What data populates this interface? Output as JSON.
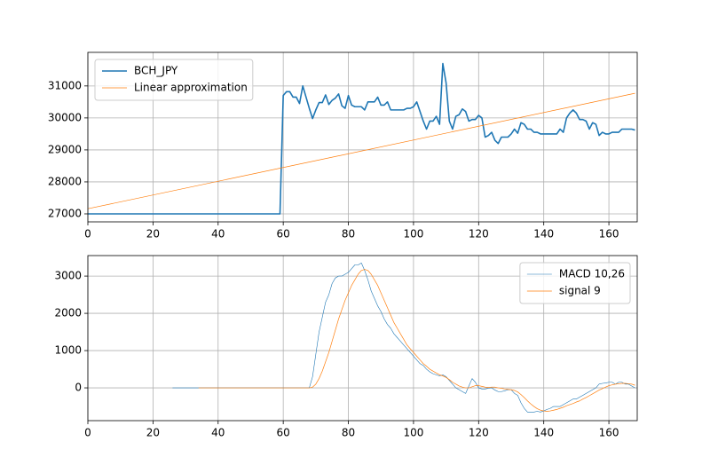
{
  "chart_data": [
    {
      "type": "line",
      "grid": true,
      "legend": "upper left",
      "xlim": [
        0,
        168.7
      ],
      "xticks": [
        0,
        20,
        40,
        60,
        80,
        100,
        120,
        140,
        160
      ],
      "ylim": [
        26750,
        32050
      ],
      "yticks": [
        27000,
        28000,
        29000,
        30000,
        31000
      ],
      "series": [
        {
          "name": "BCH_JPY",
          "color": "#1f77b4",
          "linewidth": 1.6,
          "x": [
            0,
            59,
            60,
            61,
            62,
            63,
            64,
            65,
            66,
            67,
            68,
            69,
            70,
            71,
            72,
            73,
            74,
            75,
            76,
            77,
            78,
            79,
            80,
            81,
            82,
            83,
            84,
            85,
            86,
            87,
            88,
            89,
            90,
            91,
            92,
            93,
            94,
            95,
            96,
            97,
            98,
            99,
            100,
            101,
            102,
            103,
            104,
            105,
            106,
            107,
            108,
            109,
            110,
            111,
            112,
            113,
            114,
            115,
            116,
            117,
            118,
            119,
            120,
            121,
            122,
            123,
            124,
            125,
            126,
            127,
            128,
            129,
            130,
            131,
            132,
            133,
            134,
            135,
            136,
            137,
            138,
            139,
            140,
            141,
            142,
            143,
            144,
            145,
            146,
            147,
            148,
            149,
            150,
            151,
            152,
            153,
            154,
            155,
            156,
            157,
            158,
            159,
            160,
            161,
            162,
            163,
            164,
            165,
            166,
            167,
            168
          ],
          "values": [
            27000,
            27000,
            30700,
            30820,
            30820,
            30650,
            30650,
            30450,
            31000,
            30650,
            30300,
            29980,
            30250,
            30480,
            30480,
            30720,
            30420,
            30550,
            30620,
            30750,
            30380,
            30300,
            30700,
            30400,
            30350,
            30350,
            30350,
            30250,
            30500,
            30500,
            30500,
            30650,
            30400,
            30400,
            30500,
            30250,
            30250,
            30250,
            30250,
            30250,
            30300,
            30300,
            30350,
            30500,
            30200,
            29900,
            29650,
            29900,
            29900,
            30050,
            29800,
            31700,
            31100,
            29900,
            29650,
            30050,
            30100,
            30280,
            30200,
            29900,
            29950,
            29950,
            30080,
            30000,
            29400,
            29450,
            29550,
            29300,
            29200,
            29400,
            29400,
            29400,
            29500,
            29650,
            29520,
            29850,
            29800,
            29650,
            29650,
            29550,
            29550,
            29500,
            29500,
            29500,
            29500,
            29500,
            29500,
            29650,
            29550,
            30000,
            30150,
            30250,
            30150,
            29950,
            29950,
            29900,
            29650,
            29850,
            29800,
            29450,
            29550,
            29500,
            29500,
            29550,
            29550,
            29550,
            29650,
            29650,
            29650,
            29650,
            29620
          ]
        },
        {
          "name": "Linear approximation",
          "color": "#ff7f0e",
          "linewidth": 0.7,
          "x": [
            0,
            168
          ],
          "values": [
            27160,
            30770
          ]
        }
      ]
    },
    {
      "type": "line",
      "grid": true,
      "legend": "upper right",
      "xlim": [
        0,
        168.7
      ],
      "xticks": [
        0,
        20,
        40,
        60,
        80,
        100,
        120,
        140,
        160
      ],
      "ylim": [
        -880,
        3550
      ],
      "yticks": [
        0,
        1000,
        2000,
        3000
      ],
      "series": [
        {
          "name": "MACD 10,26",
          "color": "#1f77b4",
          "linewidth": 0.6,
          "x": [
            26,
            68,
            69,
            70,
            71,
            72,
            73,
            74,
            75,
            76,
            77,
            78,
            79,
            80,
            81,
            82,
            83,
            84,
            85,
            86,
            87,
            88,
            89,
            90,
            91,
            92,
            93,
            94,
            95,
            96,
            97,
            98,
            99,
            100,
            101,
            102,
            103,
            104,
            105,
            106,
            107,
            108,
            109,
            110,
            111,
            112,
            113,
            114,
            115,
            116,
            117,
            118,
            119,
            120,
            121,
            122,
            123,
            124,
            125,
            126,
            127,
            128,
            129,
            130,
            131,
            132,
            133,
            134,
            135,
            136,
            137,
            138,
            139,
            140,
            141,
            142,
            143,
            144,
            145,
            146,
            147,
            148,
            149,
            150,
            151,
            152,
            153,
            154,
            155,
            156,
            157,
            158,
            159,
            160,
            161,
            162,
            163,
            164,
            165,
            166,
            167,
            168
          ],
          "values": [
            0,
            0,
            300,
            900,
            1500,
            1900,
            2300,
            2500,
            2800,
            2950,
            3000,
            3000,
            3050,
            3100,
            3200,
            3300,
            3300,
            3350,
            3150,
            2900,
            2600,
            2400,
            2200,
            2050,
            1850,
            1700,
            1600,
            1450,
            1350,
            1250,
            1150,
            1050,
            950,
            850,
            750,
            650,
            600,
            500,
            430,
            380,
            350,
            320,
            350,
            300,
            200,
            100,
            0,
            -50,
            -100,
            -150,
            50,
            250,
            150,
            0,
            -30,
            -30,
            -10,
            0,
            -60,
            -100,
            -100,
            -80,
            -50,
            -50,
            -150,
            -200,
            -400,
            -550,
            -650,
            -650,
            -650,
            -630,
            -650,
            -620,
            -580,
            -550,
            -500,
            -500,
            -500,
            -450,
            -400,
            -350,
            -300,
            -300,
            -250,
            -200,
            -150,
            -100,
            -50,
            0,
            100,
            120,
            130,
            150,
            150,
            100,
            150,
            150,
            100,
            100,
            50,
            0
          ]
        },
        {
          "name": "signal 9",
          "color": "#ff7f0e",
          "linewidth": 0.7,
          "x": [
            34,
            68,
            69,
            70,
            71,
            72,
            73,
            74,
            75,
            76,
            77,
            78,
            79,
            80,
            81,
            82,
            83,
            84,
            85,
            86,
            87,
            88,
            89,
            90,
            91,
            92,
            93,
            94,
            95,
            96,
            97,
            98,
            99,
            100,
            101,
            102,
            103,
            104,
            105,
            106,
            107,
            108,
            109,
            110,
            111,
            112,
            113,
            114,
            115,
            116,
            117,
            118,
            119,
            120,
            121,
            122,
            123,
            124,
            125,
            126,
            127,
            128,
            129,
            130,
            131,
            132,
            133,
            134,
            135,
            136,
            137,
            138,
            139,
            140,
            141,
            142,
            143,
            144,
            145,
            146,
            147,
            148,
            149,
            150,
            151,
            152,
            153,
            154,
            155,
            156,
            157,
            158,
            159,
            160,
            161,
            162,
            163,
            164,
            165,
            166,
            167,
            168
          ],
          "values": [
            0,
            0,
            20,
            100,
            250,
            450,
            700,
            950,
            1250,
            1550,
            1850,
            2100,
            2350,
            2550,
            2750,
            2900,
            3050,
            3150,
            3180,
            3150,
            3050,
            2900,
            2750,
            2550,
            2350,
            2150,
            1950,
            1750,
            1600,
            1450,
            1300,
            1150,
            1050,
            950,
            850,
            750,
            650,
            580,
            500,
            450,
            400,
            350,
            320,
            280,
            220,
            150,
            100,
            50,
            20,
            0,
            0,
            30,
            60,
            60,
            40,
            20,
            10,
            20,
            20,
            0,
            -10,
            -30,
            -40,
            -50,
            -70,
            -110,
            -180,
            -260,
            -350,
            -430,
            -500,
            -560,
            -600,
            -620,
            -630,
            -620,
            -600,
            -580,
            -550,
            -520,
            -480,
            -450,
            -420,
            -380,
            -350,
            -300,
            -260,
            -210,
            -160,
            -110,
            -60,
            -20,
            20,
            60,
            80,
            100,
            110,
            120,
            120,
            110,
            100,
            70
          ]
        }
      ]
    }
  ]
}
